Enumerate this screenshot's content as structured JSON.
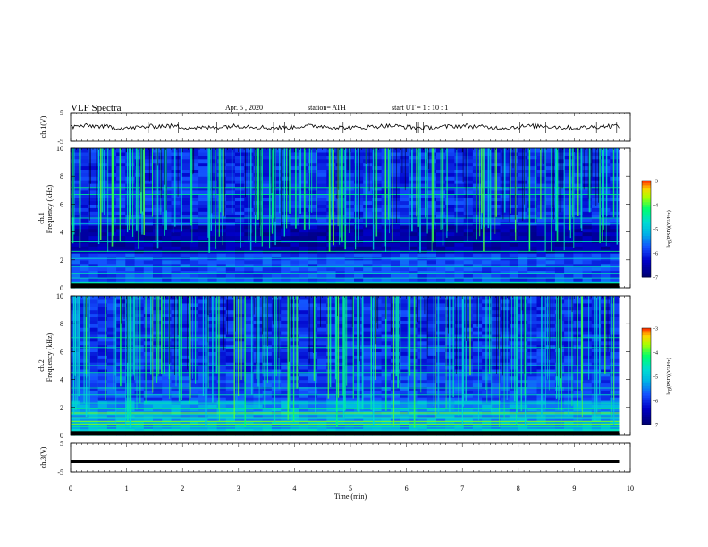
{
  "header": {
    "title": "VLF  Spectra",
    "date": "Apr. 5  , 2020",
    "station": "station= ATH",
    "start_ut": "start  UT  =    1  : 10 : 1"
  },
  "colors": {
    "spectrogram_low": "#00006a",
    "spectrogram_mid": "#1e3cff",
    "spectrogram_high": "#00d2d2",
    "spectrogram_peak": "#00ff64"
  },
  "chart_data": [
    {
      "name": "ch1-waveform",
      "type": "line",
      "ylabel": "ch.1(V)",
      "ylim": [
        -5,
        5
      ],
      "yticks": [
        "5",
        "-5"
      ],
      "xlim": [
        0,
        10
      ],
      "waveform_level_v": 0
    },
    {
      "name": "ch1-spectrogram",
      "type": "heatmap",
      "ylabel": "ch.1\nFrequency (kHz)",
      "ylabel_lines": [
        "ch.1",
        "Frequency  (kHz)"
      ],
      "ylim": [
        0,
        10
      ],
      "yticks": [
        "10",
        "8",
        "6",
        "4",
        "2",
        "0"
      ],
      "xlim": [
        0,
        10
      ],
      "data_end_min": 9.8,
      "colorbar": {
        "label": "log(PSD)(V²/Hz)",
        "range": [
          -7,
          -3
        ],
        "ticks": [
          "-3",
          "-4",
          "-5",
          "-6",
          "-7"
        ]
      }
    },
    {
      "name": "ch2-spectrogram",
      "type": "heatmap",
      "ylabel": "ch.2\nFrequency (kHz)",
      "ylabel_lines": [
        "ch.2",
        "Frequency  (kHz)"
      ],
      "ylim": [
        0,
        10
      ],
      "yticks": [
        "10",
        "8",
        "6",
        "4",
        "2",
        "0"
      ],
      "xlim": [
        0,
        10
      ],
      "data_end_min": 9.8,
      "colorbar": {
        "label": "log(PSD)(V²/Hz)",
        "range": [
          -7,
          -3
        ],
        "ticks": [
          "-3",
          "-4",
          "-5",
          "-6",
          "-7"
        ]
      }
    },
    {
      "name": "ch3-waveform",
      "type": "line",
      "ylabel": "ch.3(V)",
      "ylim": [
        -5,
        5
      ],
      "yticks": [
        "5",
        "-5"
      ],
      "xlim": [
        0,
        10
      ],
      "waveform_level_v": -1.4
    }
  ],
  "xaxis": {
    "label": "Time  (min)",
    "ticks": [
      "0",
      "1",
      "2",
      "3",
      "4",
      "5",
      "6",
      "7",
      "8",
      "9",
      "10"
    ]
  }
}
